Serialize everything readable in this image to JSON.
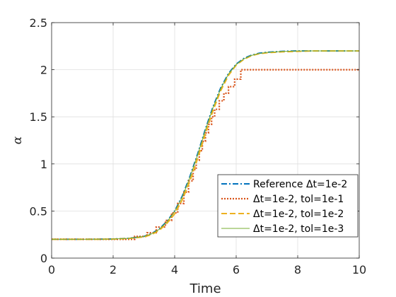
{
  "chart_data": {
    "type": "line",
    "title": "",
    "xlabel": "Time",
    "ylabel": "α",
    "xlim": [
      0,
      10
    ],
    "ylim": [
      0,
      2.5
    ],
    "xticks": [
      0,
      2,
      4,
      6,
      8,
      10
    ],
    "yticks": [
      0,
      0.5,
      1,
      1.5,
      2,
      2.5
    ],
    "xtick_labels": [
      "0",
      "2",
      "4",
      "6",
      "8",
      "10"
    ],
    "ytick_labels": [
      "0",
      "0.5",
      "1",
      "1.5",
      "2",
      "2.5"
    ],
    "grid": true,
    "legend_position": "bottom-right",
    "series": [
      {
        "name": "Reference Δt=1e-2",
        "color": "#0072BD",
        "style": "dashdot",
        "x": [
          0,
          0.5,
          1,
          1.5,
          2,
          2.5,
          3,
          3.25,
          3.5,
          3.75,
          4,
          4.25,
          4.5,
          4.75,
          5,
          5.25,
          5.5,
          5.75,
          6,
          6.25,
          6.5,
          6.75,
          7,
          7.5,
          8,
          8.5,
          9,
          9.5,
          10
        ],
        "y": [
          0.2,
          0.2,
          0.2,
          0.201,
          0.203,
          0.21,
          0.23,
          0.26,
          0.31,
          0.39,
          0.5,
          0.66,
          0.87,
          1.11,
          1.37,
          1.61,
          1.81,
          1.96,
          2.06,
          2.12,
          2.155,
          2.175,
          2.185,
          2.195,
          2.2,
          2.2,
          2.2,
          2.2,
          2.2
        ]
      },
      {
        "name": "Δt=1e-2, tol=1e-1",
        "color": "#D95319",
        "style": "dotted",
        "x": [
          0,
          2.7,
          2.7,
          3.1,
          3.1,
          3.4,
          3.4,
          3.7,
          3.7,
          3.9,
          3.9,
          4.1,
          4.1,
          4.3,
          4.3,
          4.45,
          4.45,
          4.6,
          4.6,
          4.7,
          4.7,
          4.8,
          4.8,
          4.9,
          4.9,
          5.0,
          5.0,
          5.1,
          5.1,
          5.2,
          5.2,
          5.3,
          5.3,
          5.45,
          5.45,
          5.6,
          5.6,
          5.75,
          5.75,
          5.95,
          5.95,
          6.15,
          6.15,
          10
        ],
        "y": [
          0.2,
          0.2,
          0.23,
          0.23,
          0.27,
          0.27,
          0.33,
          0.33,
          0.4,
          0.4,
          0.48,
          0.48,
          0.58,
          0.58,
          0.7,
          0.7,
          0.82,
          0.82,
          0.94,
          0.94,
          1.04,
          1.04,
          1.14,
          1.14,
          1.24,
          1.24,
          1.33,
          1.33,
          1.42,
          1.42,
          1.5,
          1.5,
          1.58,
          1.58,
          1.67,
          1.67,
          1.75,
          1.75,
          1.82,
          1.82,
          1.9,
          1.9,
          2.0,
          2.0
        ]
      },
      {
        "name": "Δt=1e-2, tol=1e-2",
        "color": "#EDB120",
        "style": "dashed",
        "x": [
          0,
          0.5,
          1,
          1.5,
          2,
          2.5,
          3,
          3.25,
          3.5,
          3.75,
          4,
          4.25,
          4.5,
          4.75,
          5,
          5.25,
          5.5,
          5.75,
          6,
          6.25,
          6.5,
          6.75,
          7,
          7.5,
          8,
          8.5,
          9,
          9.5,
          10
        ],
        "y": [
          0.2,
          0.2,
          0.2,
          0.2,
          0.202,
          0.208,
          0.225,
          0.25,
          0.295,
          0.37,
          0.47,
          0.62,
          0.82,
          1.06,
          1.32,
          1.57,
          1.78,
          1.94,
          2.05,
          2.11,
          2.15,
          2.17,
          2.18,
          2.19,
          2.195,
          2.2,
          2.2,
          2.2,
          2.2
        ]
      },
      {
        "name": "Δt=1e-2, tol=1e-3",
        "color": "#77AC30",
        "style": "solid",
        "x": [
          0,
          0.5,
          1,
          1.5,
          2,
          2.5,
          3,
          3.25,
          3.5,
          3.75,
          4,
          4.25,
          4.5,
          4.75,
          5,
          5.25,
          5.5,
          5.75,
          6,
          6.25,
          6.5,
          6.75,
          7,
          7.5,
          8,
          8.5,
          9,
          9.5,
          10
        ],
        "y": [
          0.2,
          0.2,
          0.2,
          0.201,
          0.203,
          0.21,
          0.23,
          0.258,
          0.305,
          0.385,
          0.495,
          0.65,
          0.86,
          1.1,
          1.36,
          1.6,
          1.8,
          1.955,
          2.055,
          2.115,
          2.152,
          2.172,
          2.184,
          2.194,
          2.2,
          2.2,
          2.2,
          2.2,
          2.2
        ]
      }
    ]
  }
}
